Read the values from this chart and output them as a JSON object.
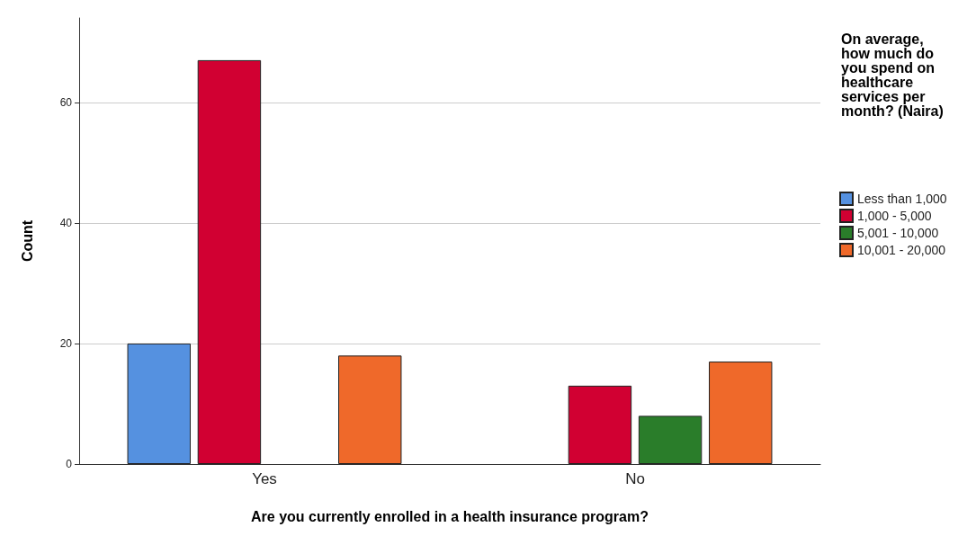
{
  "chart_data": {
    "type": "bar",
    "xlabel": "Are you currently enrolled in a health insurance program?",
    "ylabel": "Count",
    "legend_title": "On average, how much do you spend on healthcare services per month? (Naira)",
    "categories": [
      "Yes",
      "No"
    ],
    "series": [
      {
        "name": "Less than 1,000",
        "color": "#5591e0",
        "values": [
          20,
          null
        ]
      },
      {
        "name": "1,000 - 5,000",
        "color": "#d10032",
        "values": [
          67,
          13
        ]
      },
      {
        "name": "5,001 - 10,000",
        "color": "#2a7d2a",
        "values": [
          null,
          8
        ]
      },
      {
        "name": "10,001 - 20,000",
        "color": "#ef692a",
        "values": [
          18,
          17
        ]
      }
    ],
    "ylim": [
      0,
      74
    ],
    "yticks": [
      0,
      20,
      40,
      60
    ],
    "grid": "y",
    "legend": "right"
  }
}
